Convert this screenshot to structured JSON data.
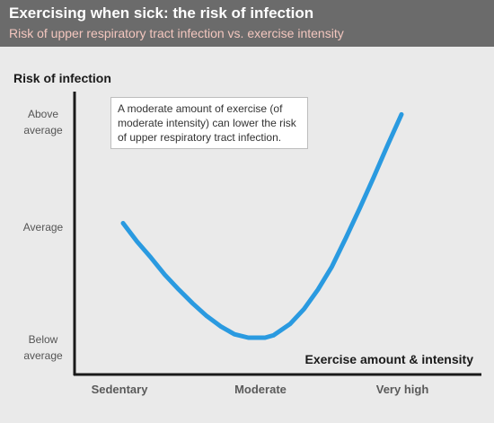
{
  "header": {
    "title": "Exercising when sick: the risk of infection",
    "subtitle": "Risk of upper respiratory tract infection vs. exercise intensity"
  },
  "colors": {
    "header_bg": "#6b6b6b",
    "subtitle": "#f4c7bf",
    "curve": "#2a9ae0",
    "axis": "#1a1a1a"
  },
  "annotation": "A moderate amount of exercise (of moderate intensity) can lower the risk of upper respiratory tract infection.",
  "chart_data": {
    "type": "line",
    "title": "Exercising when sick: the risk of infection",
    "subtitle": "Risk of upper respiratory tract infection vs. exercise intensity",
    "ylabel": "Risk of infection",
    "xlabel": "Exercise amount & intensity",
    "x_ticks": [
      "Sedentary",
      "Moderate",
      "Very high"
    ],
    "y_ticks": [
      {
        "label": "Below average",
        "lines": [
          "Below",
          "average"
        ],
        "value": 0
      },
      {
        "label": "Average",
        "lines": [
          "Average"
        ],
        "value": 1
      },
      {
        "label": "Above average",
        "lines": [
          "Above",
          "average"
        ],
        "value": 2
      }
    ],
    "xlim": [
      0,
      1
    ],
    "ylim": [
      0,
      2
    ],
    "grid": false,
    "legend": "none",
    "series": [
      {
        "x": [
          0.0,
          0.05,
          0.1,
          0.15,
          0.2,
          0.25,
          0.3,
          0.35,
          0.4,
          0.45,
          0.48,
          0.51,
          0.54,
          0.6,
          0.65,
          0.7,
          0.75,
          0.8,
          0.85,
          0.9,
          0.95,
          1.0
        ],
        "y": [
          1.0,
          0.84,
          0.7,
          0.55,
          0.42,
          0.3,
          0.19,
          0.1,
          0.03,
          0.0,
          0.0,
          0.0,
          0.02,
          0.12,
          0.25,
          0.42,
          0.62,
          0.87,
          1.13,
          1.4,
          1.68,
          1.95
        ]
      }
    ]
  }
}
